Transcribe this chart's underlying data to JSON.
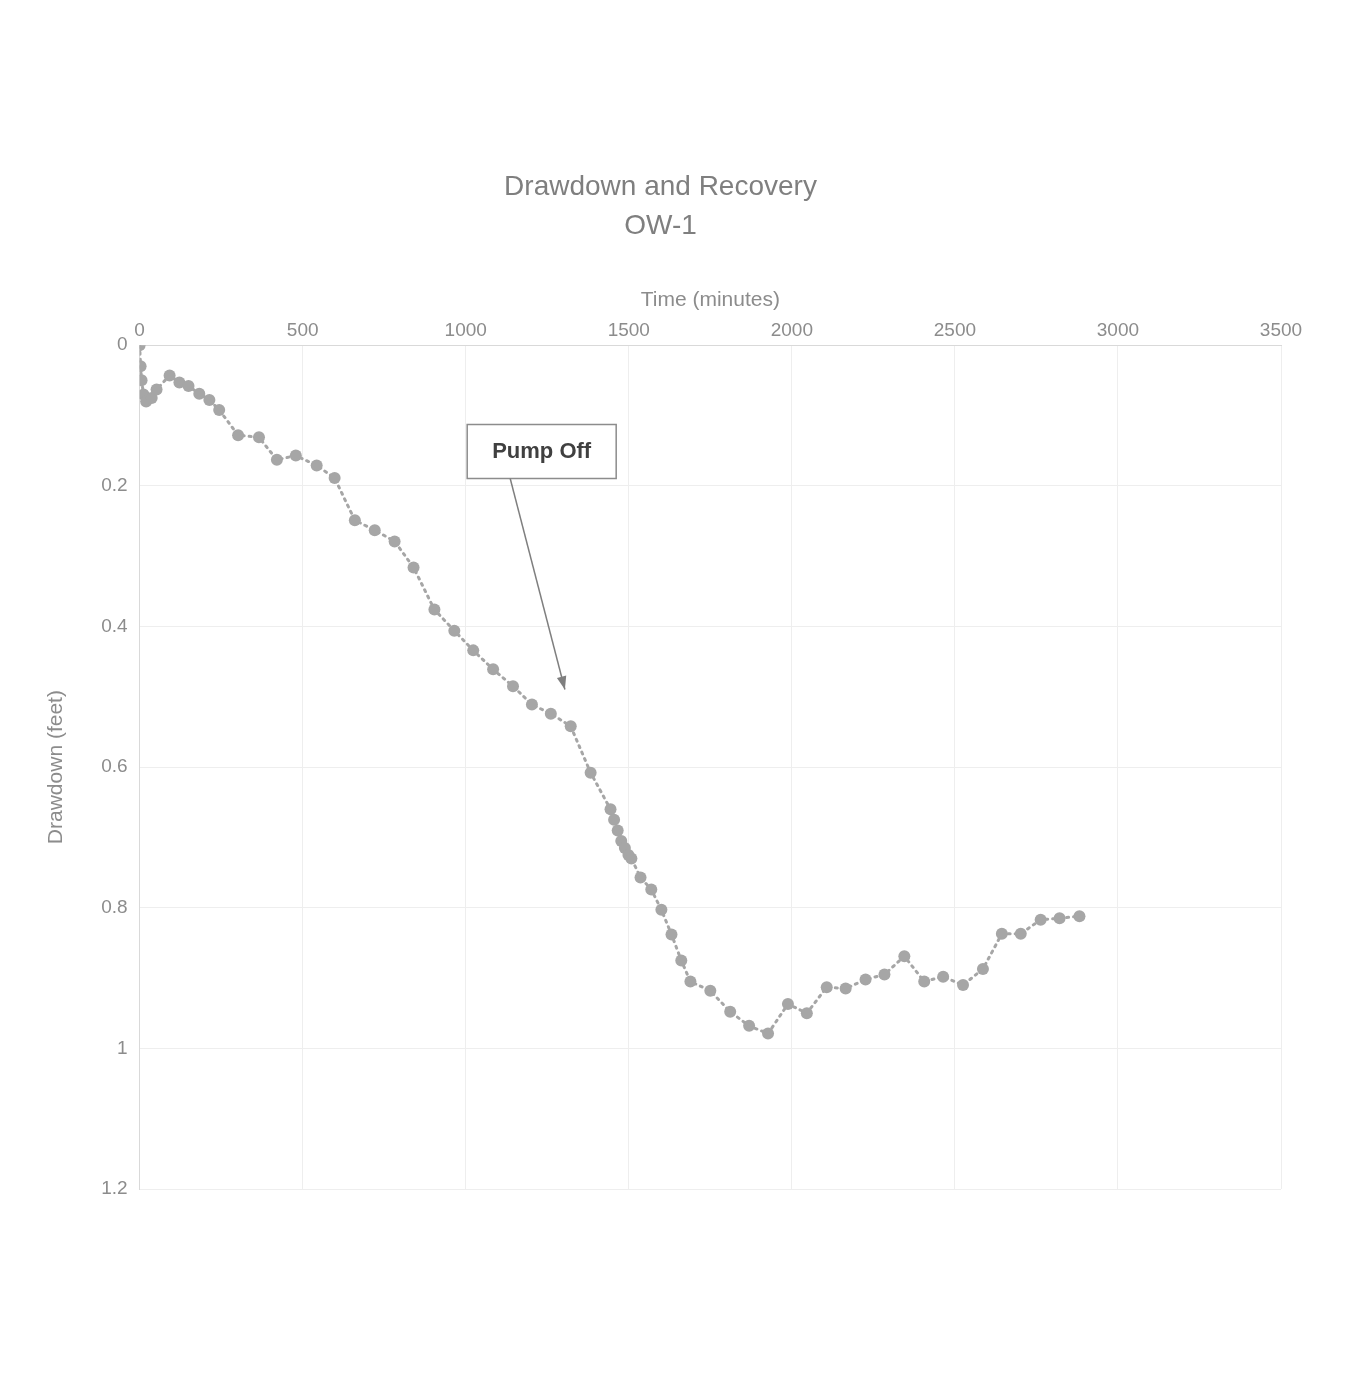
{
  "chart_data": {
    "type": "line",
    "title": "Drawdown and Recovery",
    "subtitle": "OW-1",
    "xlabel": "Time (minutes)",
    "ylabel": "Drawdown (feet)",
    "x": [
      0,
      3,
      6,
      12,
      20,
      37,
      52,
      92,
      122,
      150,
      183,
      214,
      244,
      302,
      366,
      421,
      479,
      543,
      598,
      660,
      721,
      782,
      840,
      904,
      965,
      1023,
      1084,
      1145,
      1203,
      1261,
      1322,
      1383,
      1444,
      1455,
      1466,
      1477,
      1488,
      1499,
      1508,
      1536,
      1569,
      1600,
      1631,
      1661,
      1689,
      1750,
      1811,
      1869,
      1927,
      1988,
      2046,
      2107,
      2165,
      2226,
      2284,
      2345,
      2406,
      2464,
      2525,
      2586,
      2644,
      2702,
      2763,
      2821,
      2882
    ],
    "values": [
      0,
      0.03,
      0.05,
      0.07,
      0.08,
      0.075,
      0.063,
      0.043,
      0.053,
      0.058,
      0.069,
      0.078,
      0.092,
      0.128,
      0.131,
      0.163,
      0.157,
      0.171,
      0.189,
      0.249,
      0.263,
      0.279,
      0.316,
      0.376,
      0.406,
      0.434,
      0.461,
      0.485,
      0.511,
      0.524,
      0.542,
      0.608,
      0.66,
      0.675,
      0.69,
      0.705,
      0.715,
      0.725,
      0.73,
      0.757,
      0.774,
      0.803,
      0.838,
      0.875,
      0.905,
      0.918,
      0.948,
      0.968,
      0.979,
      0.937,
      0.95,
      0.913,
      0.915,
      0.902,
      0.895,
      0.869,
      0.905,
      0.898,
      0.91,
      0.887,
      0.837,
      0.837,
      0.817,
      0.815,
      0.812
    ],
    "color": "#a6a6a6",
    "marker": "circle",
    "line_style": "dotted",
    "xlim": [
      0,
      3500
    ],
    "xticks": [
      0,
      500,
      1000,
      1500,
      2000,
      2500,
      3000,
      3500
    ],
    "ylim": [
      1.2,
      0
    ],
    "yticks": [
      0,
      0.2,
      0.4,
      0.6,
      0.8,
      1,
      1.2
    ],
    "grid": true,
    "legend": false,
    "annotations": [
      "Pump Off"
    ]
  }
}
